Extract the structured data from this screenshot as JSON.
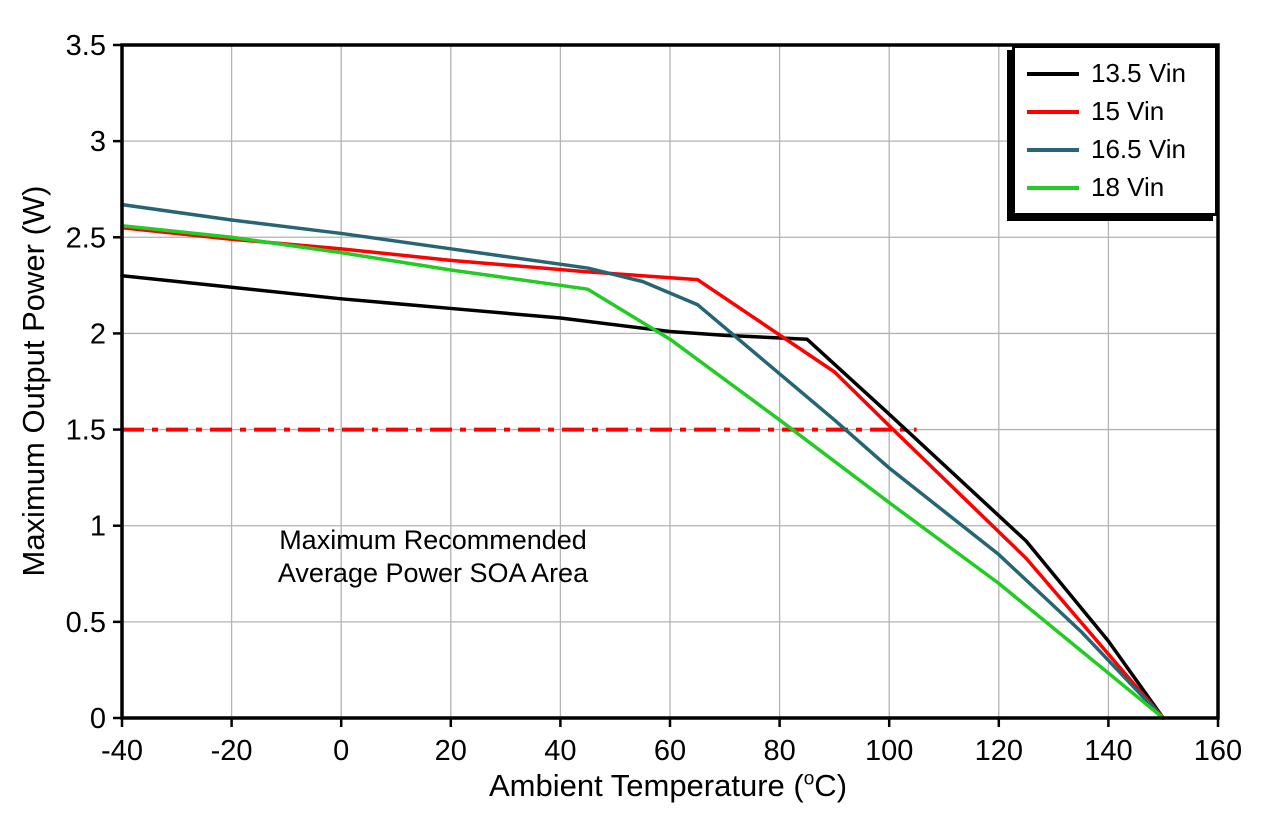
{
  "chart_data": {
    "type": "line",
    "title": "",
    "xlabel": "Ambient Temperature (°C)",
    "xlabel_parts": {
      "prefix": "Ambient Temperature (",
      "sup": "o",
      "suffix": "C)"
    },
    "ylabel": "Maximum Output Power (W)",
    "xlim": [
      -40,
      160
    ],
    "ylim": [
      0,
      3.5
    ],
    "xticks": [
      -40,
      -20,
      0,
      20,
      40,
      60,
      80,
      100,
      120,
      140,
      160
    ],
    "yticks": [
      0,
      0.5,
      1,
      1.5,
      2,
      2.5,
      3,
      3.5
    ],
    "grid": true,
    "legend_position": "top-right",
    "colors": {
      "background": "#ffffff",
      "grid": "#b3b3b3",
      "axis": "#000000"
    },
    "annotation": {
      "line1": "Maximum Recommended",
      "line2": "Average Power SOA Area",
      "x": 16,
      "y": 0.88
    },
    "soa_limit_line": {
      "y": 1.5,
      "x_start": -40,
      "x_end": 105,
      "color": "#ff0000",
      "style": "dash-dot",
      "width": 4
    },
    "series": [
      {
        "name": "13.5 Vin",
        "color": "#000000",
        "points": [
          [
            -40,
            2.3
          ],
          [
            -20,
            2.24
          ],
          [
            0,
            2.18
          ],
          [
            20,
            2.13
          ],
          [
            40,
            2.08
          ],
          [
            60,
            2.01
          ],
          [
            70,
            1.99
          ],
          [
            85,
            1.97
          ],
          [
            100,
            1.58
          ],
          [
            125,
            0.92
          ],
          [
            140,
            0.4
          ],
          [
            150,
            0
          ]
        ]
      },
      {
        "name": "15 Vin",
        "color": "#ff0000",
        "points": [
          [
            -40,
            2.55
          ],
          [
            -20,
            2.49
          ],
          [
            0,
            2.44
          ],
          [
            20,
            2.38
          ],
          [
            45,
            2.32
          ],
          [
            65,
            2.28
          ],
          [
            90,
            1.8
          ],
          [
            100,
            1.52
          ],
          [
            125,
            0.83
          ],
          [
            150,
            0
          ]
        ]
      },
      {
        "name": "16.5 Vin",
        "color": "#266573",
        "points": [
          [
            -40,
            2.67
          ],
          [
            -20,
            2.59
          ],
          [
            0,
            2.52
          ],
          [
            20,
            2.44
          ],
          [
            45,
            2.34
          ],
          [
            55,
            2.27
          ],
          [
            65,
            2.15
          ],
          [
            90,
            1.55
          ],
          [
            100,
            1.3
          ],
          [
            120,
            0.85
          ],
          [
            135,
            0.45
          ],
          [
            150,
            0
          ]
        ]
      },
      {
        "name": "18 Vin",
        "color": "#22cc22",
        "points": [
          [
            -40,
            2.56
          ],
          [
            -20,
            2.5
          ],
          [
            0,
            2.42
          ],
          [
            20,
            2.33
          ],
          [
            45,
            2.23
          ],
          [
            60,
            1.97
          ],
          [
            80,
            1.55
          ],
          [
            100,
            1.12
          ],
          [
            120,
            0.7
          ],
          [
            150,
            0
          ]
        ]
      }
    ]
  }
}
